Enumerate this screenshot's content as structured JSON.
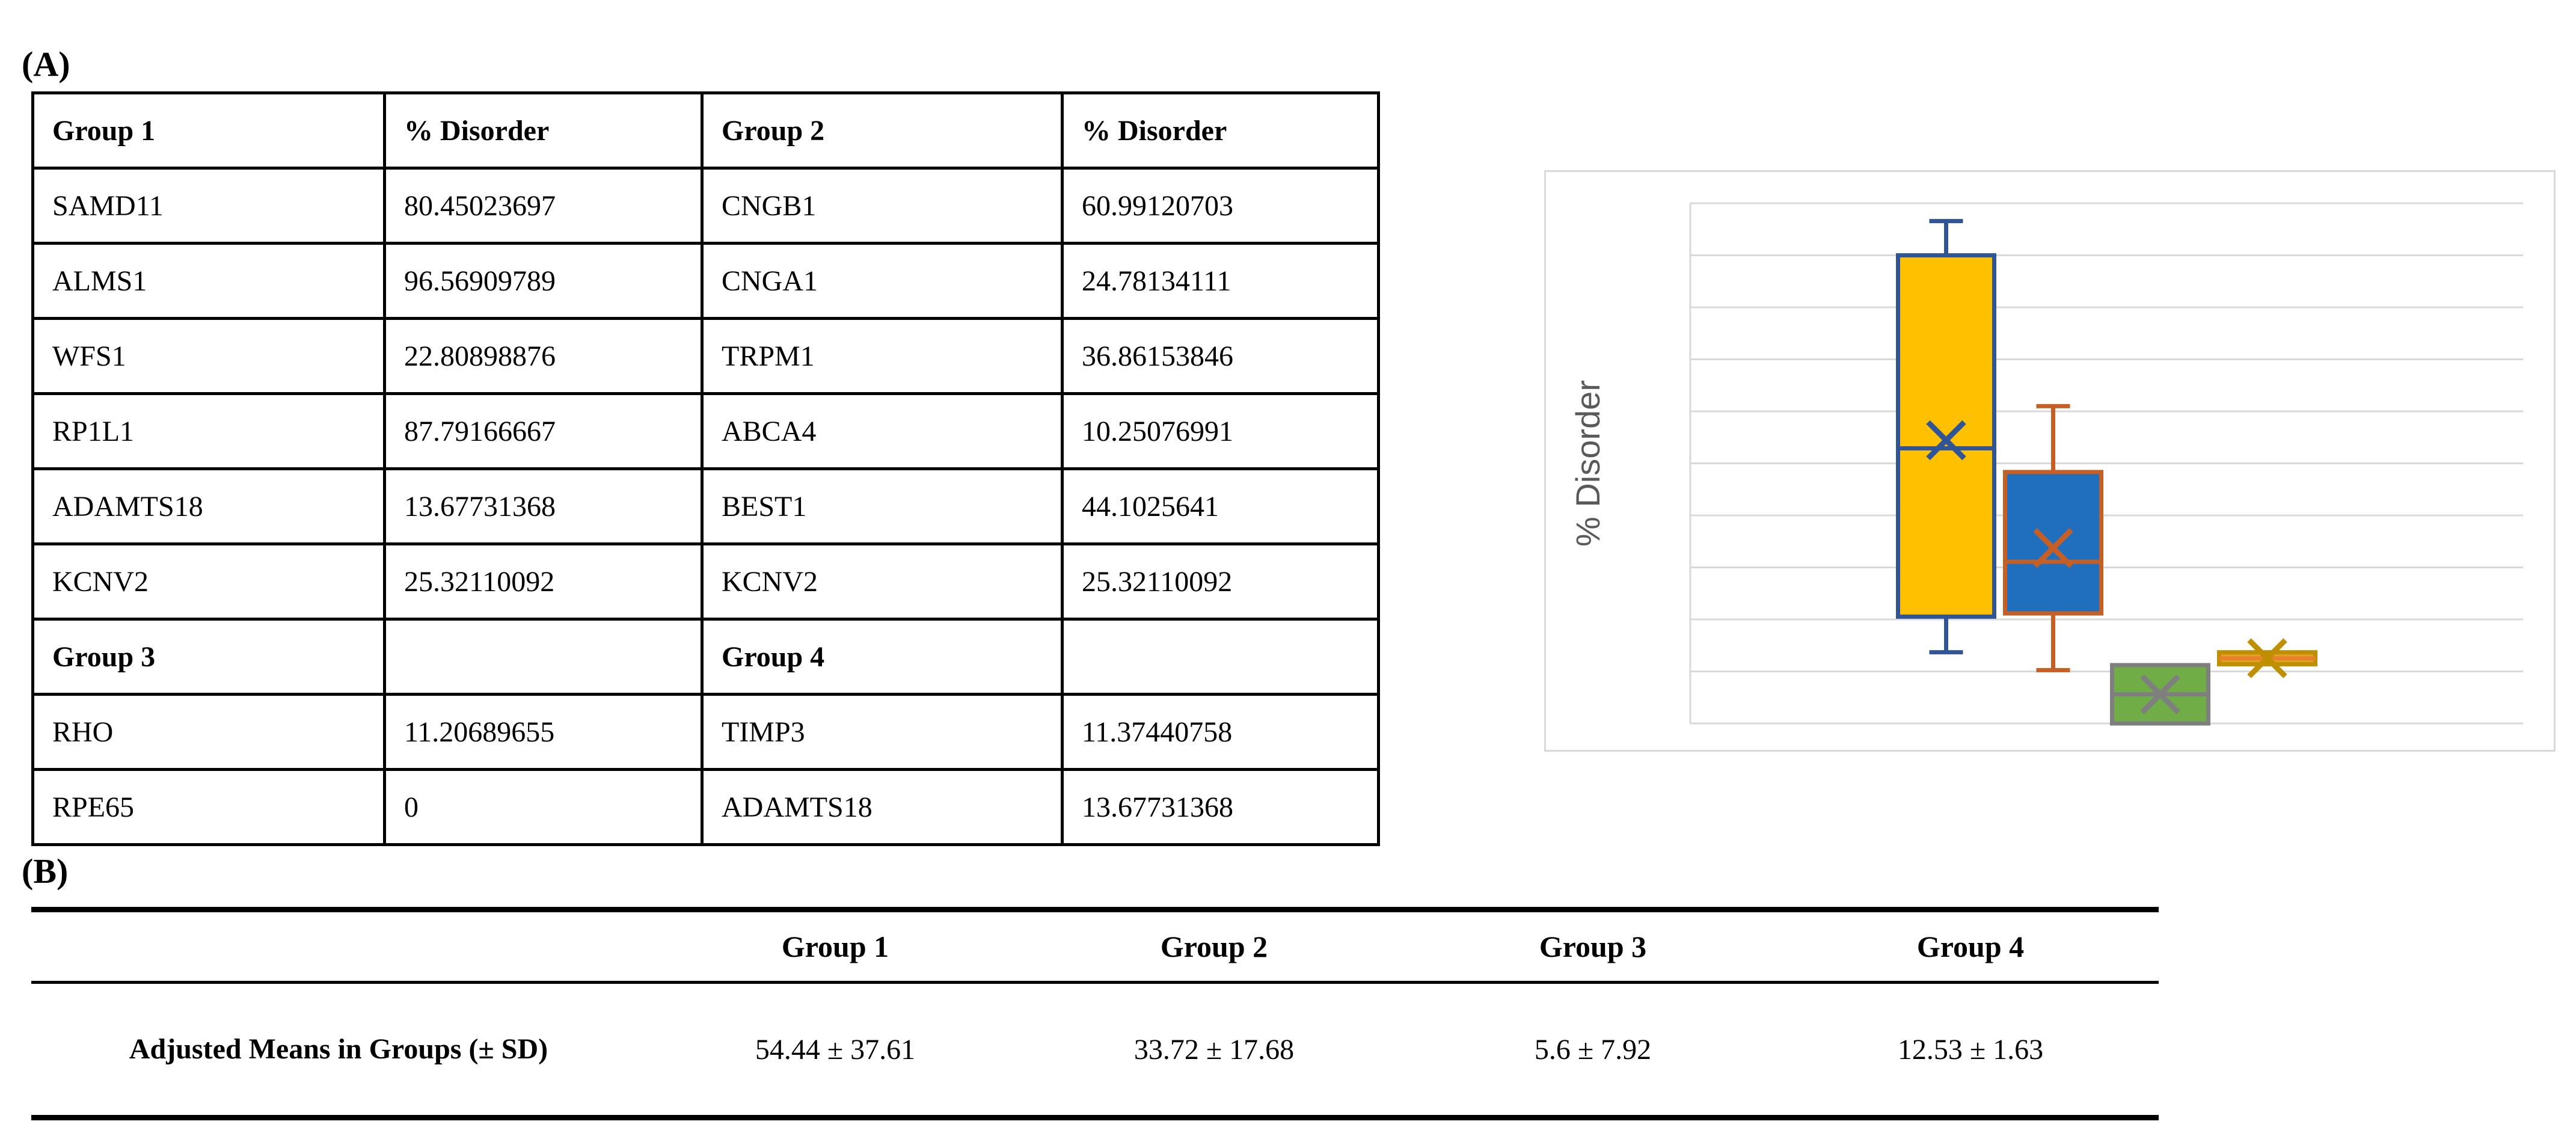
{
  "panel_a": {
    "label": "(A)",
    "table": {
      "rows": [
        {
          "header": true,
          "cells": [
            "Group 1",
            "% Disorder",
            "Group 2",
            "% Disorder"
          ]
        },
        {
          "header": false,
          "cells": [
            "SAMD11",
            "80.45023697",
            "CNGB1",
            "60.99120703"
          ]
        },
        {
          "header": false,
          "cells": [
            "ALMS1",
            "96.56909789",
            "CNGA1",
            "24.78134111"
          ]
        },
        {
          "header": false,
          "cells": [
            "WFS1",
            "22.80898876",
            "TRPM1",
            "36.86153846"
          ]
        },
        {
          "header": false,
          "cells": [
            "RP1L1",
            "87.79166667",
            "ABCA4",
            "10.25076991"
          ]
        },
        {
          "header": false,
          "cells": [
            "ADAMTS18",
            "13.67731368",
            "BEST1",
            "44.1025641"
          ]
        },
        {
          "header": false,
          "cells": [
            "KCNV2",
            "25.32110092",
            "KCNV2",
            "25.32110092"
          ]
        },
        {
          "header": true,
          "cells": [
            "Group 3",
            "",
            "Group 4",
            ""
          ]
        },
        {
          "header": false,
          "cells": [
            "RHO",
            "11.20689655",
            "TIMP3",
            "11.37440758"
          ]
        },
        {
          "header": false,
          "cells": [
            "RPE65",
            "0",
            "ADAMTS18",
            "13.67731368"
          ]
        }
      ]
    }
  },
  "chart_data": {
    "type": "boxplot",
    "title": "",
    "xlabel": "",
    "ylabel": "% Disorder",
    "ylim": [
      0,
      100
    ],
    "gridline_step": 10,
    "grid": true,
    "legend": "none",
    "colors": {
      "grid": "#D9D9D9",
      "frame": "#D9D9D9",
      "axis_label": "#595959",
      "background": "#FFFFFF"
    },
    "series": [
      {
        "name": "Group 1",
        "points": [
          80.45023697,
          96.56909789,
          22.80898876,
          87.79166667,
          13.67731368,
          25.32110092
        ],
        "box": {
          "whisker_low": 13.68,
          "q1": 20.53,
          "median": 52.89,
          "q3": 89.99,
          "whisker_high": 96.57,
          "mean": 54.44
        },
        "fill": "#FFC000",
        "line": "#2F5597"
      },
      {
        "name": "Group 2",
        "points": [
          60.99120703,
          24.78134111,
          36.86153846,
          10.25076991,
          44.1025641,
          25.32110092
        ],
        "box": {
          "whisker_low": 10.25,
          "q1": 21.15,
          "median": 31.09,
          "q3": 48.33,
          "whisker_high": 60.99,
          "mean": 33.72
        },
        "fill": "#1F6FBE",
        "line": "#C55F26"
      },
      {
        "name": "Group 3",
        "points": [
          11.20689655,
          0
        ],
        "box": {
          "whisker_low": 0,
          "q1": 0,
          "median": 5.6,
          "q3": 11.21,
          "whisker_high": 11.21,
          "mean": 5.6
        },
        "fill": "#70AD47",
        "line": "#7F7F7F"
      },
      {
        "name": "Group 4",
        "points": [
          11.37440758,
          13.67731368
        ],
        "box": {
          "whisker_low": 11.37,
          "q1": 11.37,
          "median": 12.53,
          "q3": 13.68,
          "whisker_high": 13.68,
          "mean": 12.53
        },
        "fill": "#DFA324",
        "line": "#BF8F00",
        "median_color": "#E8812C"
      }
    ]
  },
  "panel_b": {
    "label": "(B)",
    "table": {
      "col_headers": [
        "",
        "Group 1",
        "Group 2",
        "Group 3",
        "Group 4"
      ],
      "row_label": "Adjusted Means in Groups (± SD)",
      "values": [
        "54.44 ± 37.61",
        "33.72 ± 17.68",
        "5.6 ± 7.92",
        "12.53 ± 1.63"
      ]
    }
  }
}
